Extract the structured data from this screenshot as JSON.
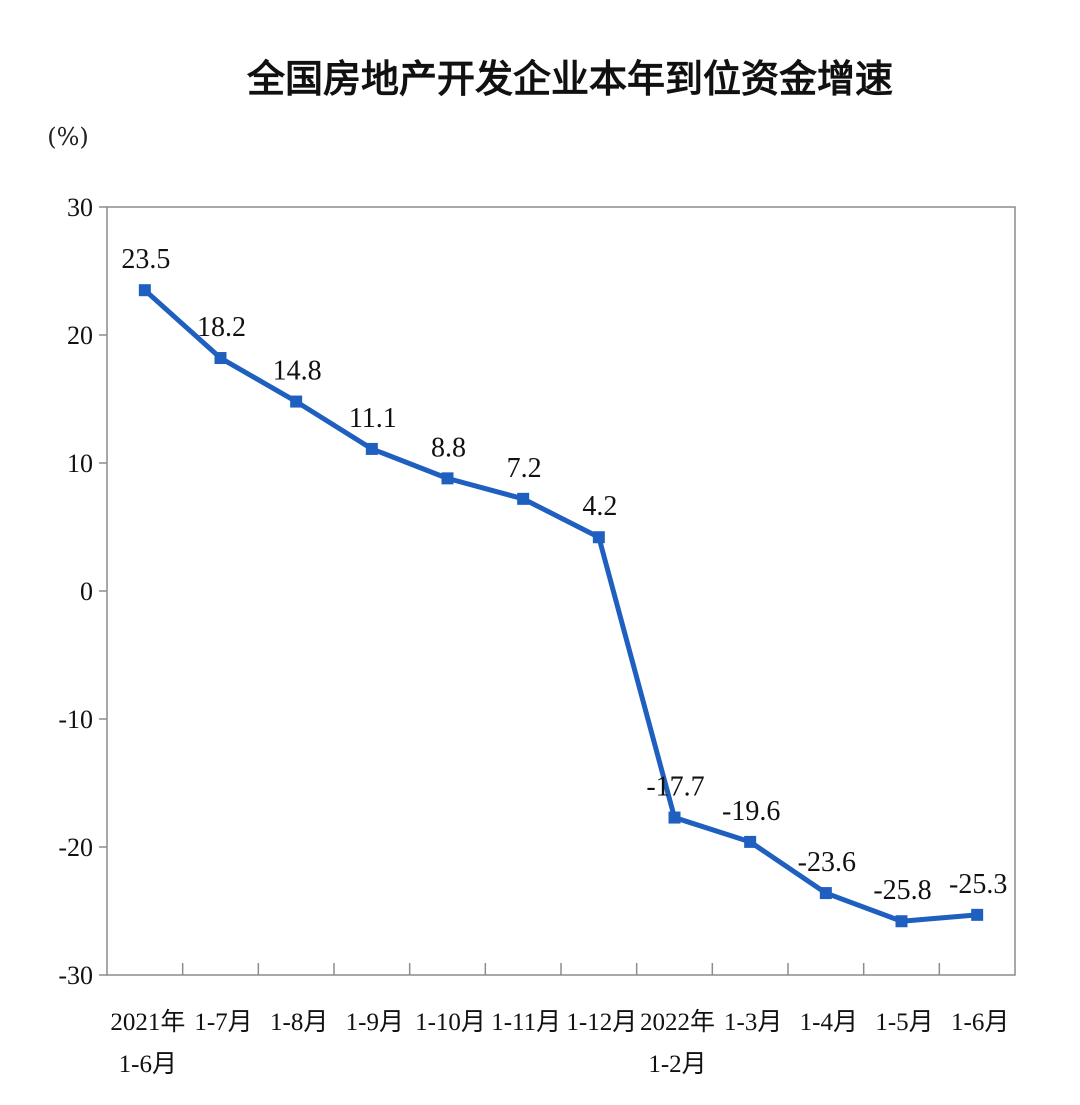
{
  "chart_data": {
    "type": "line",
    "title": "全国房地产开发企业本年到位资金增速",
    "unit_label": "(%)",
    "xlabel": "",
    "ylabel": "",
    "ylim": [
      -30,
      30
    ],
    "yticks": [
      30,
      20,
      10,
      0,
      -10,
      -20,
      -30
    ],
    "grid": false,
    "categories": [
      [
        "2021年",
        "1-6月"
      ],
      [
        "1-7月"
      ],
      [
        "1-8月"
      ],
      [
        "1-9月"
      ],
      [
        "1-10月"
      ],
      [
        "1-11月"
      ],
      [
        "1-12月"
      ],
      [
        "2022年",
        "1-2月"
      ],
      [
        "1-3月"
      ],
      [
        "1-4月"
      ],
      [
        "1-5月"
      ],
      [
        "1-6月"
      ]
    ],
    "series": [
      {
        "values": [
          23.5,
          18.2,
          14.8,
          11.1,
          8.8,
          7.2,
          4.2,
          -17.7,
          -19.6,
          -23.6,
          -25.8,
          -25.3
        ],
        "labels": [
          "23.5",
          "18.2",
          "14.8",
          "11.1",
          "8.8",
          "7.2",
          "4.2",
          "-17.7",
          "-19.6",
          "-23.6",
          "-25.8",
          "-25.3"
        ],
        "color": "#1f5fbf"
      }
    ],
    "colors": {
      "line": "#1f5fbf",
      "axis": "#8c8c8c"
    }
  }
}
